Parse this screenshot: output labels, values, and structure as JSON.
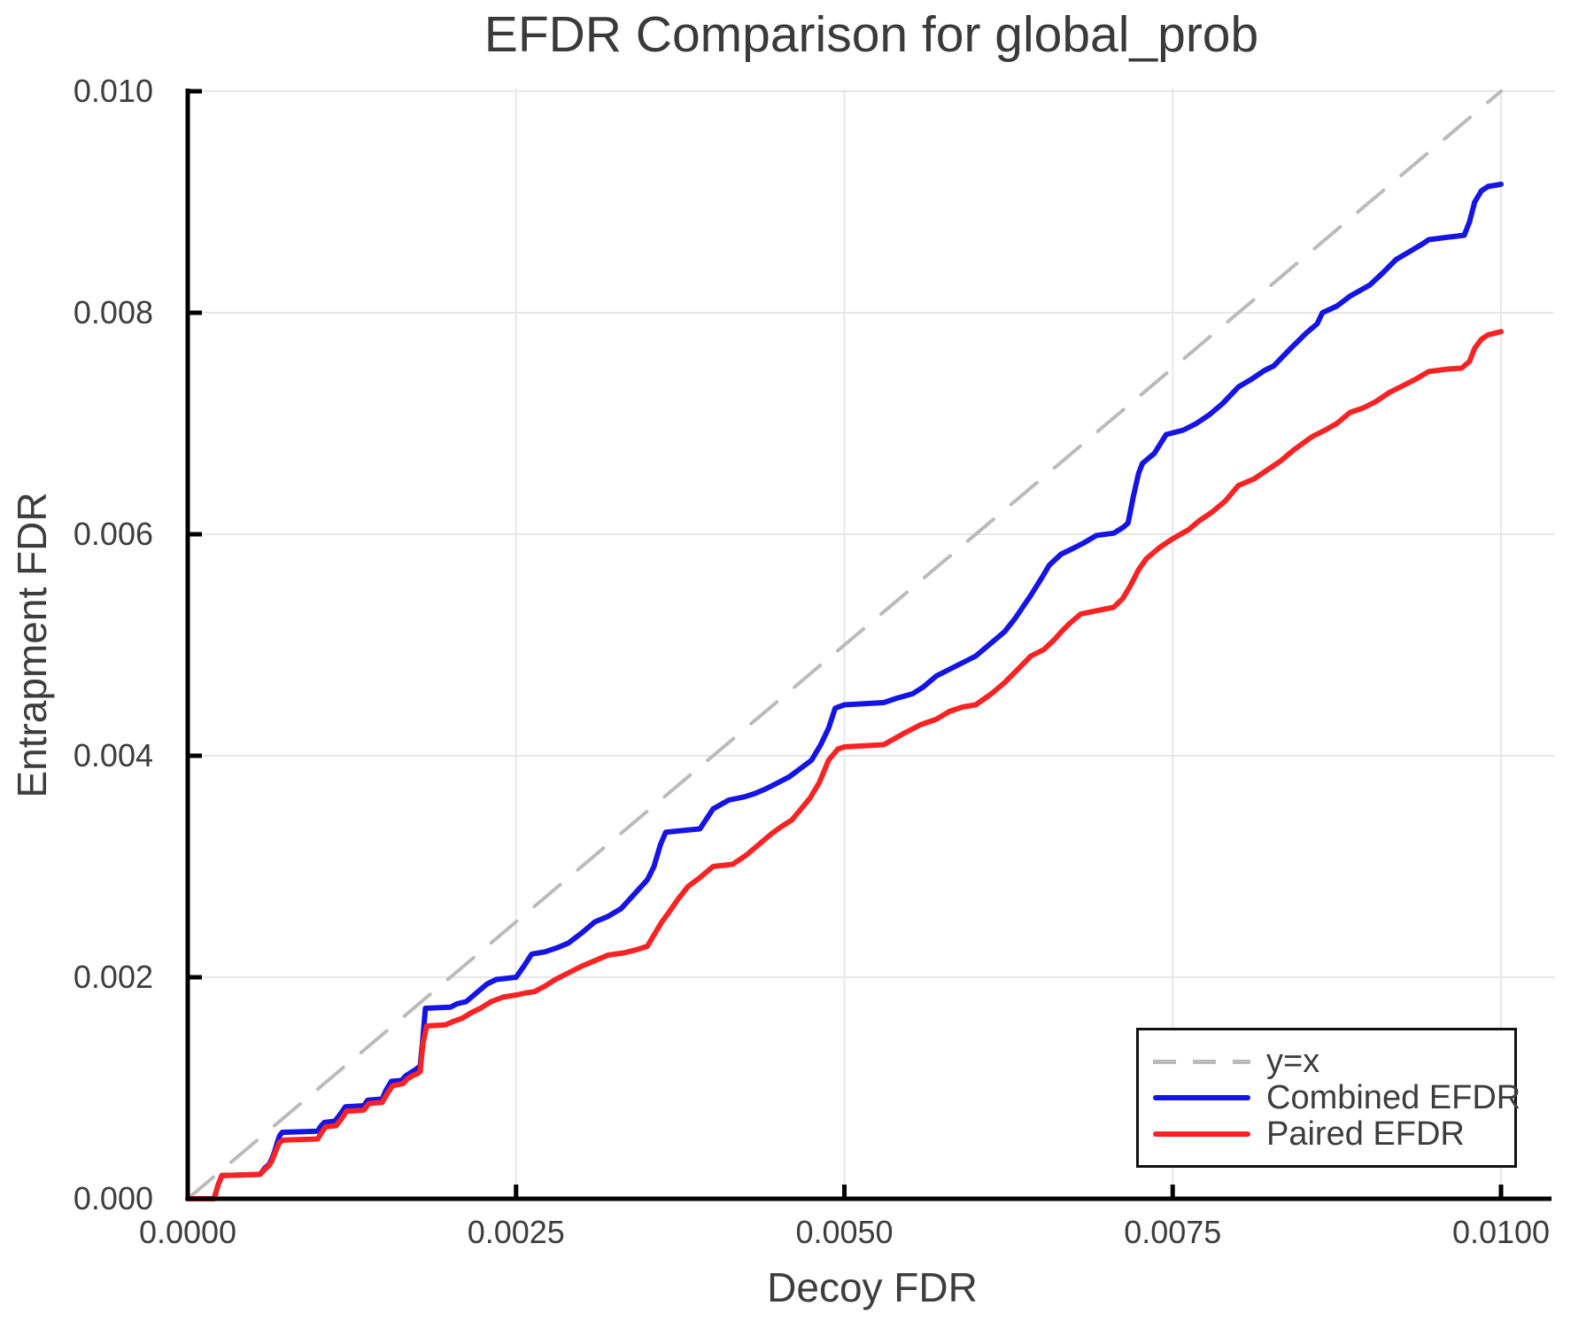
{
  "chart_data": {
    "type": "line",
    "title": "EFDR Comparison for global_prob",
    "xlabel": "Decoy FDR",
    "ylabel": "Entrapment FDR",
    "xlim": [
      0.0,
      0.01
    ],
    "ylim": [
      0.0,
      0.01
    ],
    "grid": true,
    "legend_position": "bottom-right",
    "x_ticks": {
      "values": [
        0.0,
        0.0025,
        0.005,
        0.0075,
        0.01
      ],
      "labels": [
        "0.0000",
        "0.0025",
        "0.0050",
        "0.0075",
        "0.0100"
      ]
    },
    "y_ticks": {
      "values": [
        0.0,
        0.002,
        0.004,
        0.006,
        0.008,
        0.01
      ],
      "labels": [
        "0.000",
        "0.002",
        "0.004",
        "0.006",
        "0.008",
        "0.010"
      ]
    },
    "series": [
      {
        "name": "y=x",
        "color": "#bbbbbb",
        "dashed": true,
        "width": 4,
        "points": [
          [
            0.0,
            0.0
          ],
          [
            0.01,
            0.01
          ]
        ]
      },
      {
        "name": "Combined EFDR",
        "color": "#1414e6",
        "dashed": false,
        "width": 6,
        "points": [
          [
            0.0,
            0.0
          ],
          [
            0.0002,
            0.0
          ],
          [
            0.00023,
            0.00012
          ],
          [
            0.00026,
            0.00021
          ],
          [
            0.00055,
            0.00022
          ],
          [
            0.00059,
            0.00028
          ],
          [
            0.00062,
            0.00031
          ],
          [
            0.00064,
            0.00036
          ],
          [
            0.00066,
            0.00042
          ],
          [
            0.00068,
            0.0005
          ],
          [
            0.0007,
            0.00057
          ],
          [
            0.00072,
            0.0006
          ],
          [
            0.00099,
            0.00061
          ],
          [
            0.00101,
            0.00065
          ],
          [
            0.00104,
            0.00069
          ],
          [
            0.00112,
            0.0007
          ],
          [
            0.00116,
            0.00076
          ],
          [
            0.0012,
            0.00083
          ],
          [
            0.00134,
            0.00084
          ],
          [
            0.00137,
            0.00089
          ],
          [
            0.00148,
            0.0009
          ],
          [
            0.00151,
            0.00098
          ],
          [
            0.00155,
            0.00106
          ],
          [
            0.00163,
            0.00107
          ],
          [
            0.00166,
            0.00111
          ],
          [
            0.0017,
            0.00114
          ],
          [
            0.00174,
            0.00117
          ],
          [
            0.00177,
            0.0012
          ],
          [
            0.00179,
            0.00145
          ],
          [
            0.00181,
            0.00172
          ],
          [
            0.002,
            0.00173
          ],
          [
            0.00205,
            0.00176
          ],
          [
            0.00212,
            0.00178
          ],
          [
            0.0022,
            0.00186
          ],
          [
            0.00228,
            0.00194
          ],
          [
            0.00235,
            0.00198
          ],
          [
            0.0025,
            0.002
          ],
          [
            0.00256,
            0.0021
          ],
          [
            0.00262,
            0.00221
          ],
          [
            0.00272,
            0.00223
          ],
          [
            0.00282,
            0.00227
          ],
          [
            0.0029,
            0.00231
          ],
          [
            0.003,
            0.0024
          ],
          [
            0.0031,
            0.0025
          ],
          [
            0.0032,
            0.00255
          ],
          [
            0.0033,
            0.00262
          ],
          [
            0.0034,
            0.00275
          ],
          [
            0.0035,
            0.00288
          ],
          [
            0.00355,
            0.003
          ],
          [
            0.0036,
            0.0032
          ],
          [
            0.00364,
            0.00331
          ],
          [
            0.0039,
            0.00334
          ],
          [
            0.004,
            0.00352
          ],
          [
            0.00412,
            0.0036
          ],
          [
            0.00424,
            0.00363
          ],
          [
            0.00432,
            0.00366
          ],
          [
            0.0044,
            0.0037
          ],
          [
            0.0045,
            0.00376
          ],
          [
            0.00458,
            0.00381
          ],
          [
            0.00466,
            0.00388
          ],
          [
            0.00475,
            0.00396
          ],
          [
            0.00482,
            0.0041
          ],
          [
            0.00488,
            0.00425
          ],
          [
            0.00493,
            0.00443
          ],
          [
            0.005,
            0.00446
          ],
          [
            0.0053,
            0.00448
          ],
          [
            0.0054,
            0.00452
          ],
          [
            0.00552,
            0.00456
          ],
          [
            0.0056,
            0.00462
          ],
          [
            0.0057,
            0.00472
          ],
          [
            0.0058,
            0.00478
          ],
          [
            0.0059,
            0.00484
          ],
          [
            0.006,
            0.0049
          ],
          [
            0.00612,
            0.00502
          ],
          [
            0.00622,
            0.00512
          ],
          [
            0.0063,
            0.00524
          ],
          [
            0.00642,
            0.00545
          ],
          [
            0.0065,
            0.0056
          ],
          [
            0.00656,
            0.00572
          ],
          [
            0.00665,
            0.00582
          ],
          [
            0.00672,
            0.00586
          ],
          [
            0.00682,
            0.00592
          ],
          [
            0.00692,
            0.00599
          ],
          [
            0.00705,
            0.00601
          ],
          [
            0.00712,
            0.00606
          ],
          [
            0.00716,
            0.0061
          ],
          [
            0.0072,
            0.00634
          ],
          [
            0.00724,
            0.00655
          ],
          [
            0.00727,
            0.00664
          ],
          [
            0.00733,
            0.0067
          ],
          [
            0.00736,
            0.00673
          ],
          [
            0.00745,
            0.0069
          ],
          [
            0.00758,
            0.00694
          ],
          [
            0.00768,
            0.007
          ],
          [
            0.00778,
            0.00708
          ],
          [
            0.00788,
            0.00718
          ],
          [
            0.008,
            0.00733
          ],
          [
            0.0081,
            0.0074
          ],
          [
            0.0082,
            0.00748
          ],
          [
            0.00827,
            0.00752
          ],
          [
            0.0084,
            0.00768
          ],
          [
            0.00852,
            0.00782
          ],
          [
            0.0086,
            0.0079
          ],
          [
            0.00864,
            0.008
          ],
          [
            0.00875,
            0.00806
          ],
          [
            0.00885,
            0.00815
          ],
          [
            0.009,
            0.00825
          ],
          [
            0.0091,
            0.00836
          ],
          [
            0.0092,
            0.00848
          ],
          [
            0.0093,
            0.00855
          ],
          [
            0.0094,
            0.00862
          ],
          [
            0.00945,
            0.00866
          ],
          [
            0.00958,
            0.00868
          ],
          [
            0.00972,
            0.0087
          ],
          [
            0.00976,
            0.00882
          ],
          [
            0.0098,
            0.009
          ],
          [
            0.00985,
            0.0091
          ],
          [
            0.0099,
            0.00914
          ],
          [
            0.01,
            0.00916
          ]
        ]
      },
      {
        "name": "Paired EFDR",
        "color": "#fa2222",
        "dashed": false,
        "width": 6,
        "points": [
          [
            0.0,
            0.0
          ],
          [
            0.0002,
            0.0
          ],
          [
            0.00023,
            0.00012
          ],
          [
            0.00026,
            0.00021
          ],
          [
            0.00055,
            0.00022
          ],
          [
            0.00059,
            0.00027
          ],
          [
            0.00062,
            0.0003
          ],
          [
            0.00064,
            0.00034
          ],
          [
            0.00066,
            0.0004
          ],
          [
            0.00068,
            0.00046
          ],
          [
            0.0007,
            0.00051
          ],
          [
            0.00073,
            0.00053
          ],
          [
            0.00099,
            0.00054
          ],
          [
            0.00102,
            0.0006
          ],
          [
            0.00105,
            0.00065
          ],
          [
            0.00113,
            0.00066
          ],
          [
            0.00117,
            0.00072
          ],
          [
            0.00121,
            0.00079
          ],
          [
            0.00134,
            0.0008
          ],
          [
            0.00138,
            0.00086
          ],
          [
            0.00148,
            0.00087
          ],
          [
            0.00152,
            0.00095
          ],
          [
            0.00156,
            0.00102
          ],
          [
            0.00164,
            0.00104
          ],
          [
            0.00167,
            0.00108
          ],
          [
            0.00171,
            0.00111
          ],
          [
            0.00175,
            0.00113
          ],
          [
            0.00177,
            0.00115
          ],
          [
            0.00179,
            0.0014
          ],
          [
            0.00182,
            0.00156
          ],
          [
            0.00196,
            0.00157
          ],
          [
            0.00202,
            0.0016
          ],
          [
            0.00209,
            0.00163
          ],
          [
            0.00216,
            0.00168
          ],
          [
            0.00223,
            0.00172
          ],
          [
            0.00231,
            0.00178
          ],
          [
            0.0024,
            0.00182
          ],
          [
            0.0025,
            0.00184
          ],
          [
            0.00258,
            0.00186
          ],
          [
            0.00264,
            0.00187
          ],
          [
            0.00272,
            0.00192
          ],
          [
            0.0028,
            0.00198
          ],
          [
            0.0029,
            0.00204
          ],
          [
            0.003,
            0.0021
          ],
          [
            0.0031,
            0.00215
          ],
          [
            0.0032,
            0.0022
          ],
          [
            0.00332,
            0.00222
          ],
          [
            0.00342,
            0.00225
          ],
          [
            0.0035,
            0.00228
          ],
          [
            0.00356,
            0.0024
          ],
          [
            0.00361,
            0.0025
          ],
          [
            0.00366,
            0.00258
          ],
          [
            0.00373,
            0.0027
          ],
          [
            0.00381,
            0.00282
          ],
          [
            0.0039,
            0.0029
          ],
          [
            0.004,
            0.003
          ],
          [
            0.00415,
            0.00302
          ],
          [
            0.00425,
            0.0031
          ],
          [
            0.00435,
            0.0032
          ],
          [
            0.00445,
            0.0033
          ],
          [
            0.00452,
            0.00336
          ],
          [
            0.0046,
            0.00342
          ],
          [
            0.00467,
            0.00352
          ],
          [
            0.00474,
            0.00362
          ],
          [
            0.00481,
            0.00376
          ],
          [
            0.00488,
            0.00396
          ],
          [
            0.00495,
            0.00406
          ],
          [
            0.005,
            0.00408
          ],
          [
            0.0053,
            0.0041
          ],
          [
            0.00545,
            0.0042
          ],
          [
            0.00558,
            0.00428
          ],
          [
            0.0057,
            0.00433
          ],
          [
            0.0058,
            0.0044
          ],
          [
            0.0059,
            0.00444
          ],
          [
            0.006,
            0.00446
          ],
          [
            0.00612,
            0.00456
          ],
          [
            0.00622,
            0.00466
          ],
          [
            0.00632,
            0.00478
          ],
          [
            0.00642,
            0.0049
          ],
          [
            0.00652,
            0.00496
          ],
          [
            0.0066,
            0.00505
          ],
          [
            0.00666,
            0.00513
          ],
          [
            0.00672,
            0.0052
          ],
          [
            0.0068,
            0.00528
          ],
          [
            0.00692,
            0.00531
          ],
          [
            0.00705,
            0.00534
          ],
          [
            0.00712,
            0.00542
          ],
          [
            0.00718,
            0.00554
          ],
          [
            0.00724,
            0.00568
          ],
          [
            0.0073,
            0.00578
          ],
          [
            0.0074,
            0.00588
          ],
          [
            0.0075,
            0.00596
          ],
          [
            0.00762,
            0.00604
          ],
          [
            0.0077,
            0.00612
          ],
          [
            0.0078,
            0.0062
          ],
          [
            0.0079,
            0.0063
          ],
          [
            0.008,
            0.00644
          ],
          [
            0.00812,
            0.0065
          ],
          [
            0.00822,
            0.00658
          ],
          [
            0.00832,
            0.00666
          ],
          [
            0.00842,
            0.00676
          ],
          [
            0.00856,
            0.00688
          ],
          [
            0.00866,
            0.00694
          ],
          [
            0.00875,
            0.007
          ],
          [
            0.00885,
            0.0071
          ],
          [
            0.00895,
            0.00714
          ],
          [
            0.00905,
            0.0072
          ],
          [
            0.00915,
            0.00728
          ],
          [
            0.00925,
            0.00734
          ],
          [
            0.00935,
            0.0074
          ],
          [
            0.00945,
            0.00747
          ],
          [
            0.00958,
            0.00749
          ],
          [
            0.0097,
            0.0075
          ],
          [
            0.00976,
            0.00756
          ],
          [
            0.0098,
            0.00768
          ],
          [
            0.00985,
            0.00776
          ],
          [
            0.0099,
            0.0078
          ],
          [
            0.01,
            0.00783
          ]
        ]
      }
    ]
  },
  "style": {
    "grid_color": "#e7e7e7",
    "spine_color": "#000000",
    "text_color": "#3d3d3d"
  }
}
